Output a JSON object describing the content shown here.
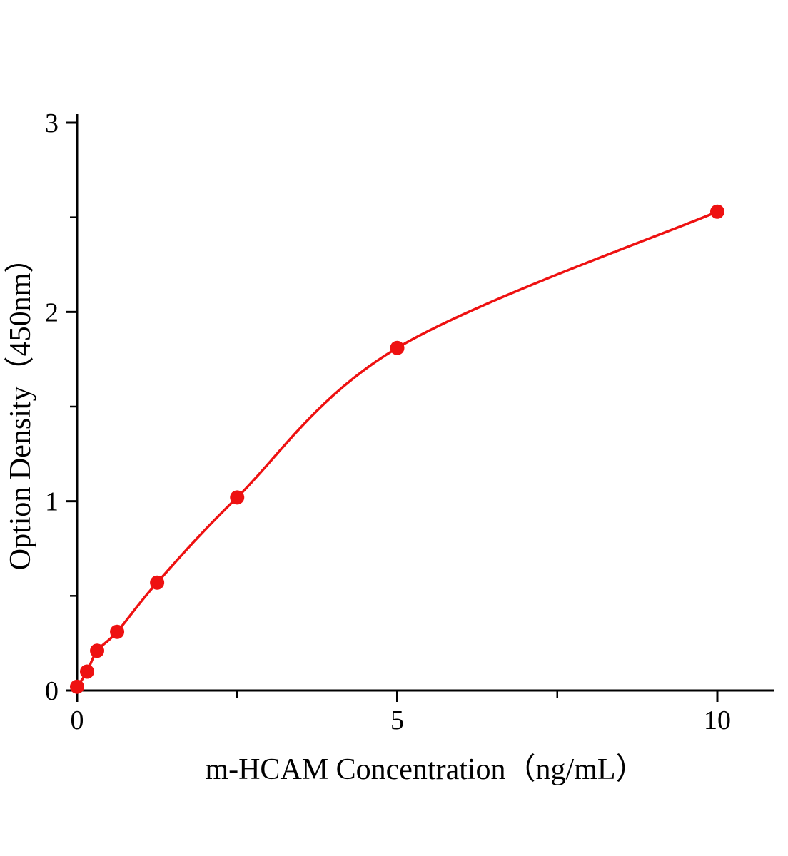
{
  "chart_data": {
    "type": "scatter",
    "title": "",
    "xlabel": "m-HCAM Concentration（ng/mL）",
    "ylabel": "Option Density（450nm）",
    "x": [
      0,
      0.156,
      0.3125,
      0.625,
      1.25,
      2.5,
      5,
      10
    ],
    "y": [
      0.02,
      0.1,
      0.21,
      0.31,
      0.57,
      1.02,
      1.81,
      2.53
    ],
    "xlim": [
      0,
      10.9
    ],
    "ylim": [
      0,
      3.05
    ],
    "x_ticks": [
      0,
      5,
      10
    ],
    "y_ticks": [
      0,
      1,
      2,
      3
    ],
    "x_minor_ticks": [
      2.5,
      7.5
    ],
    "y_minor_ticks": [
      0.5,
      1.5,
      2.5
    ],
    "x_tick_labels": [
      "0",
      "5",
      "10"
    ],
    "y_tick_labels": [
      "0",
      "1",
      "2",
      "3"
    ],
    "curve_style": "smooth-fit",
    "legend": "none",
    "grid": "off",
    "accent_color": "#ee1111",
    "axis_color": "#000000",
    "marker_radius": 10,
    "line_width": 3.5
  }
}
